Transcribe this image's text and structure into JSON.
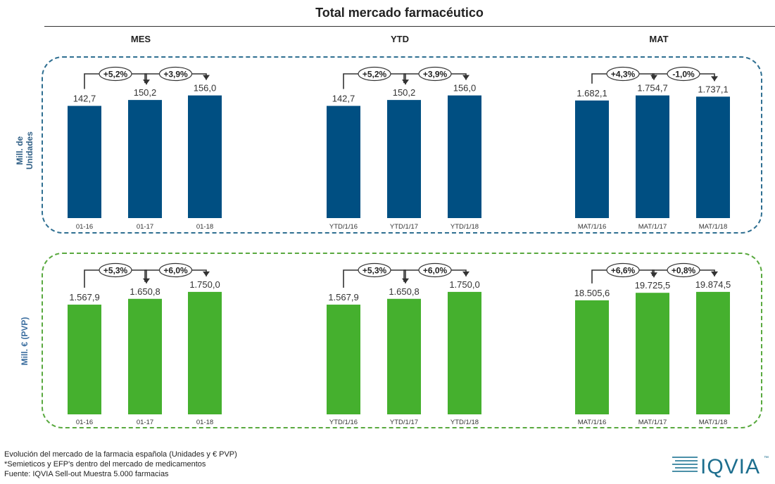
{
  "title": "Total mercado farmacéutico",
  "column_headers": [
    "MES",
    "YTD",
    "MAT"
  ],
  "row_labels": [
    "Mill. de Unidades",
    "Mill. € (PVP)"
  ],
  "colors": {
    "units": "#004f82",
    "euros": "#45b02e",
    "units_border": "#2f6f91",
    "euros_border": "#59a93f",
    "arrow": "#333333"
  },
  "chart_data": [
    {
      "type": "bar",
      "row": "Mill. de Unidades",
      "column": "MES",
      "categories": [
        "01-16",
        "01-17",
        "01-18"
      ],
      "values": [
        142.7,
        150.2,
        156.0
      ],
      "value_labels": [
        "142,7",
        "150,2",
        "156,0"
      ],
      "changes": [
        "+5,2%",
        "+3,9%"
      ],
      "ylim": [
        0,
        170
      ]
    },
    {
      "type": "bar",
      "row": "Mill. de Unidades",
      "column": "YTD",
      "categories": [
        "YTD/1/16",
        "YTD/1/17",
        "YTD/1/18"
      ],
      "values": [
        142.7,
        150.2,
        156.0
      ],
      "value_labels": [
        "142,7",
        "150,2",
        "156,0"
      ],
      "changes": [
        "+5,2%",
        "+3,9%"
      ],
      "ylim": [
        0,
        170
      ]
    },
    {
      "type": "bar",
      "row": "Mill. de Unidades",
      "column": "MAT",
      "categories": [
        "MAT/1/16",
        "MAT/1/17",
        "MAT/1/18"
      ],
      "values": [
        1682.1,
        1754.7,
        1737.1
      ],
      "value_labels": [
        "1.682,1",
        "1.754,7",
        "1.737,1"
      ],
      "changes": [
        "+4,3%",
        "-1,0%"
      ],
      "ylim": [
        0,
        1912
      ]
    },
    {
      "type": "bar",
      "row": "Mill. € (PVP)",
      "column": "MES",
      "categories": [
        "01-16",
        "01-17",
        "01-18"
      ],
      "values": [
        1567.9,
        1650.8,
        1750.0
      ],
      "value_labels": [
        "1.567,9",
        "1.650,8",
        "1.750,0"
      ],
      "changes": [
        "+5,3%",
        "+6,0%"
      ],
      "ylim": [
        0,
        1910
      ]
    },
    {
      "type": "bar",
      "row": "Mill. € (PVP)",
      "column": "YTD",
      "categories": [
        "YTD/1/16",
        "YTD/1/17",
        "YTD/1/18"
      ],
      "values": [
        1567.9,
        1650.8,
        1750.0
      ],
      "value_labels": [
        "1.567,9",
        "1.650,8",
        "1.750,0"
      ],
      "changes": [
        "+5,3%",
        "+6,0%"
      ],
      "ylim": [
        0,
        1910
      ]
    },
    {
      "type": "bar",
      "row": "Mill. € (PVP)",
      "column": "MAT",
      "categories": [
        "MAT/1/16",
        "MAT/1/17",
        "MAT/1/18"
      ],
      "values": [
        18505.6,
        19725.5,
        19874.5
      ],
      "value_labels": [
        "18.505,6",
        "19.725,5",
        "19.874,5"
      ],
      "changes": [
        "+6,6%",
        "+0,8%"
      ],
      "ylim": [
        0,
        21690
      ]
    }
  ],
  "footer": [
    "Evolución del mercado de la farmacia española (Unidades y € PVP)",
    "*Semieticos y EFP's dentro del mercado de medicamentos",
    "Fuente: IQVIA Sell-out Muestra 5.000 farmacias"
  ],
  "logo": {
    "text": "IQVIA",
    "tm": "™"
  }
}
